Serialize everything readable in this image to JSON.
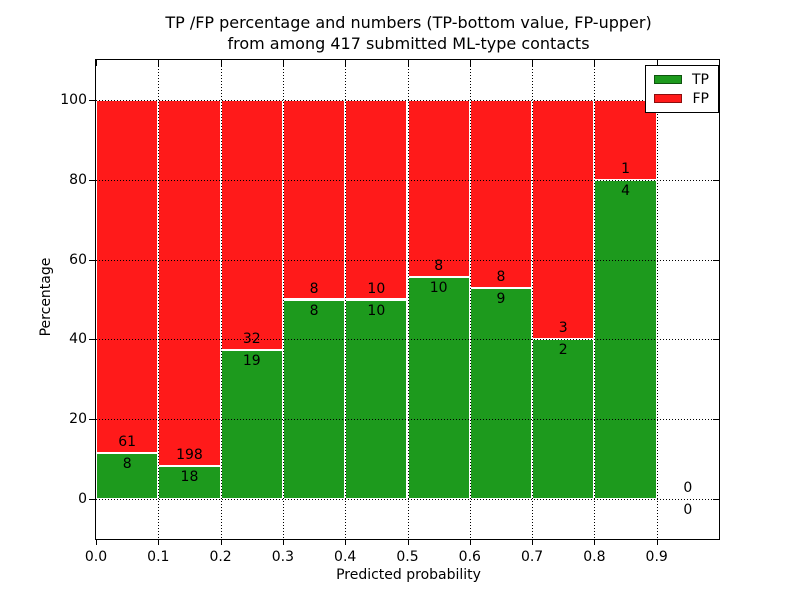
{
  "title": {
    "line1": "TP /FP percentage and numbers (TP-bottom value, FP-upper)",
    "line2": "from among 417 submitted ML-type contacts"
  },
  "axes": {
    "xlabel": "Predicted probability",
    "ylabel": "Percentage",
    "x_ticks": [
      "0.0",
      "0.1",
      "0.2",
      "0.3",
      "0.4",
      "0.5",
      "0.6",
      "0.7",
      "0.8",
      "0.9"
    ],
    "y_ticks": [
      "0",
      "20",
      "40",
      "60",
      "80",
      "100"
    ],
    "xlim": [
      0,
      1.0
    ],
    "ylim": [
      -10,
      110
    ],
    "grid": "dotted"
  },
  "legend": {
    "position": "upper right"
  },
  "chart_data": {
    "type": "bar",
    "stacked": true,
    "title": "TP /FP percentage and numbers (TP-bottom value, FP-upper) from among 417 submitted ML-type contacts",
    "xlabel": "Predicted probability",
    "ylabel": "Percentage",
    "xlim": [
      0,
      1.0
    ],
    "ylim": [
      -10,
      110
    ],
    "legend_position": "upper right",
    "bin_starts": [
      0.0,
      0.1,
      0.2,
      0.3,
      0.4,
      0.5,
      0.6,
      0.7,
      0.8,
      0.9
    ],
    "bin_width": 0.1,
    "total_contacts": 417,
    "series": [
      {
        "name": "TP",
        "color": "#1d9a1d",
        "counts": [
          8,
          18,
          19,
          8,
          10,
          10,
          9,
          2,
          4,
          0
        ]
      },
      {
        "name": "FP",
        "color": "#ff1a1a",
        "counts": [
          61,
          198,
          32,
          8,
          10,
          8,
          8,
          3,
          1,
          0
        ]
      }
    ],
    "tp_percent": [
      11.6,
      8.3,
      37.3,
      50.0,
      50.0,
      55.6,
      52.9,
      40.0,
      80.0,
      null
    ],
    "bars_total_height_percent": 100
  }
}
